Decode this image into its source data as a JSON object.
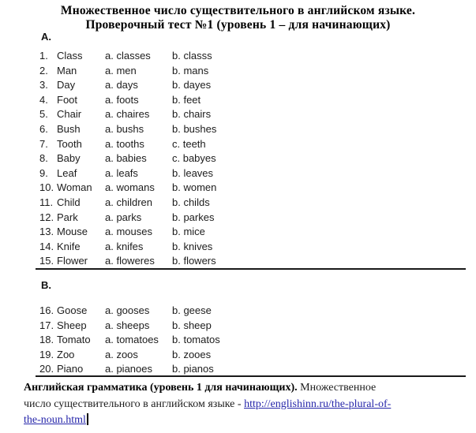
{
  "title": {
    "line1": "Множественное число существительного в английском языке.",
    "line2": "Проверочный тест №1 (уровень 1 – для начинающих)"
  },
  "sections": [
    {
      "label": "А.",
      "items": [
        {
          "num": "1.",
          "word": "Class",
          "option_a": "a. classes",
          "option_b": "b. classs"
        },
        {
          "num": "2.",
          "word": "Man",
          "option_a": "a. men",
          "option_b": "b. mans"
        },
        {
          "num": "3.",
          "word": "Day",
          "option_a": "a. days",
          "option_b": "b. dayes"
        },
        {
          "num": "4.",
          "word": "Foot",
          "option_a": "a. foots",
          "option_b": "b. feet"
        },
        {
          "num": "5.",
          "word": "Chair",
          "option_a": "a. chaires",
          "option_b": "b. chairs"
        },
        {
          "num": "6.",
          "word": "Bush",
          "option_a": "a. bushs",
          "option_b": "b. bushes"
        },
        {
          "num": "7.",
          "word": "Tooth",
          "option_a": "a. tooths",
          "option_b": "c. teeth"
        },
        {
          "num": "8.",
          "word": "Baby",
          "option_a": "a. babies",
          "option_b": "c. babyes"
        },
        {
          "num": "9.",
          "word": "Leaf",
          "option_a": "a. leafs",
          "option_b": "b. leaves"
        },
        {
          "num": "10.",
          "word": "Woman",
          "option_a": "a. womans",
          "option_b": "b. women"
        },
        {
          "num": "11.",
          "word": "Child",
          "option_a": "a. children",
          "option_b": "b. childs"
        },
        {
          "num": "12.",
          "word": "Park",
          "option_a": "a. parks",
          "option_b": "b. parkes"
        },
        {
          "num": "13.",
          "word": "Mouse",
          "option_a": "a. mouses",
          "option_b": "b. mice"
        },
        {
          "num": "14.",
          "word": "Knife",
          "option_a": "a. knifes",
          "option_b": "b. knives"
        },
        {
          "num": "15.",
          "word": "Flower",
          "option_a": "a. floweres",
          "option_b": "b. flowers"
        }
      ]
    },
    {
      "label": "В.",
      "items": [
        {
          "num": "16.",
          "word": "Goose",
          "option_a": "a. gooses",
          "option_b": "b. geese"
        },
        {
          "num": "17.",
          "word": "Sheep",
          "option_a": "a. sheeps",
          "option_b": "b. sheep"
        },
        {
          "num": "18.",
          "word": "Tomato",
          "option_a": "a. tomatoes",
          "option_b": "b. tomatos"
        },
        {
          "num": "19.",
          "word": "Zoo",
          "option_a": "a. zoos",
          "option_b": "b. zooes"
        },
        {
          "num": "20.",
          "word": "Piano",
          "option_a": "a. pianoes",
          "option_b": "b. pianos"
        }
      ]
    }
  ],
  "footer": {
    "line1_bold": "Английская грамматика (уровень 1 для начинающих).",
    "line1_text": " Множественное",
    "line2_text": "число существительного в английском языке - ",
    "line2_link": "http://englishinn.ru/the-plural-of-",
    "line3_link": "the-noun.html",
    "link_url": "http://englishinn.ru/the-plural-of-the-noun.html"
  },
  "colors": {
    "text": "#1c1c1c",
    "title": "#000000",
    "link": "#2626aa",
    "divider": "#1a1a1a",
    "background": "#ffffff"
  }
}
